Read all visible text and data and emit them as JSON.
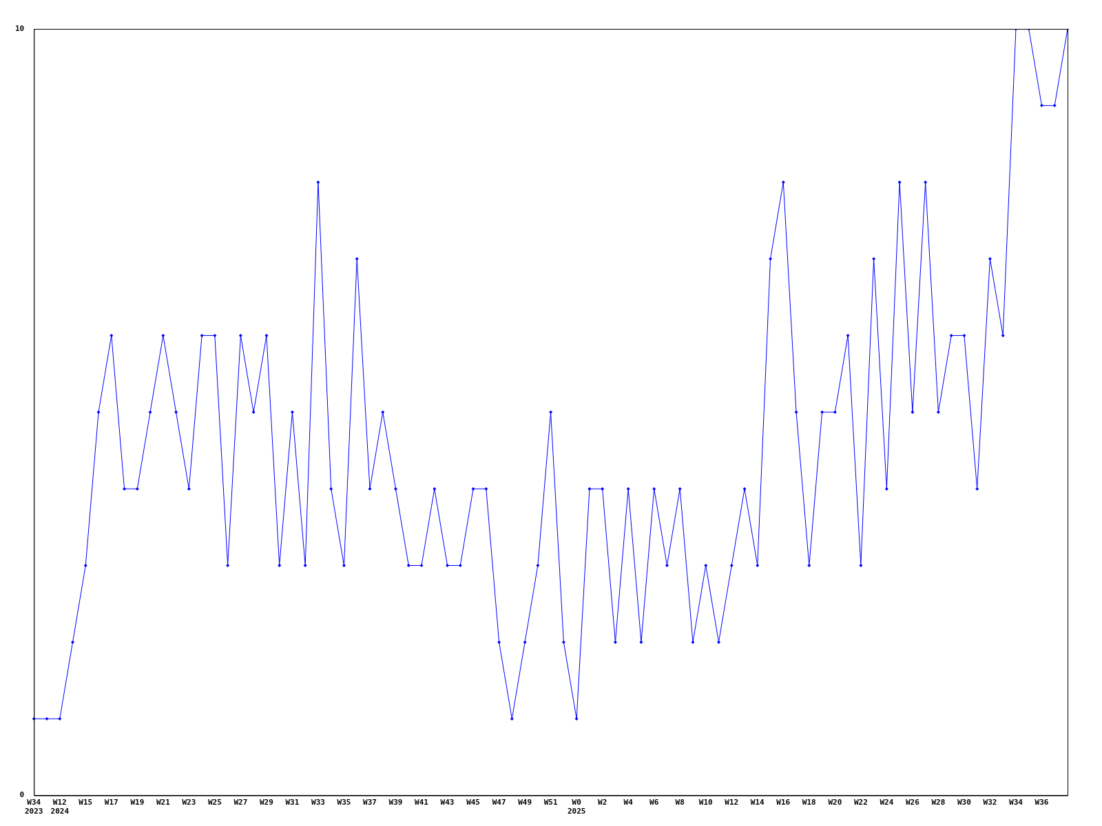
{
  "chart_data": {
    "type": "line",
    "categories": [
      "W34\n2023",
      null,
      "W12\n2024",
      null,
      "W15",
      null,
      "W17",
      null,
      "W19",
      null,
      "W21",
      null,
      "W23",
      null,
      "W25",
      null,
      "W27",
      null,
      "W29",
      null,
      "W31",
      null,
      "W33",
      null,
      "W35",
      null,
      "W37",
      null,
      "W39",
      null,
      "W41",
      null,
      "W43",
      null,
      "W45",
      null,
      "W47",
      null,
      "W49",
      null,
      "W51",
      null,
      "W0\n2025",
      null,
      "W2",
      null,
      "W4",
      null,
      "W6",
      null,
      "W8",
      null,
      "W10",
      null,
      "W12",
      null,
      "W14",
      null,
      "W16",
      null,
      "W18",
      null,
      "W20",
      null,
      "W22",
      null,
      "W24",
      null,
      "W26",
      null,
      "W28",
      null,
      "W30",
      null,
      "W32",
      null,
      "W34",
      null,
      "W36",
      null,
      null
    ],
    "series": [
      {
        "color": "#0000ff",
        "values": [
          1,
          1,
          1,
          2,
          3,
          5,
          6,
          4,
          4,
          5,
          6,
          5,
          4,
          6,
          6,
          3,
          6,
          5,
          6,
          3,
          5,
          3,
          8,
          4,
          3,
          7,
          4,
          5,
          4,
          3,
          3,
          4,
          3,
          3,
          4,
          4,
          2,
          1,
          2,
          3,
          5,
          2,
          1,
          4,
          4,
          2,
          4,
          2,
          4,
          3,
          4,
          2,
          3,
          2,
          3,
          4,
          3,
          7,
          8,
          5,
          3,
          5,
          5,
          6,
          3,
          7,
          4,
          8,
          5,
          8,
          5,
          6,
          6,
          4,
          7,
          6,
          10,
          10,
          9,
          9,
          10
        ]
      }
    ],
    "ylim": [
      0,
      10
    ],
    "yticks": [
      0,
      10
    ],
    "grid": false,
    "legend": false,
    "marker": "diamond",
    "line_style": "solid"
  }
}
